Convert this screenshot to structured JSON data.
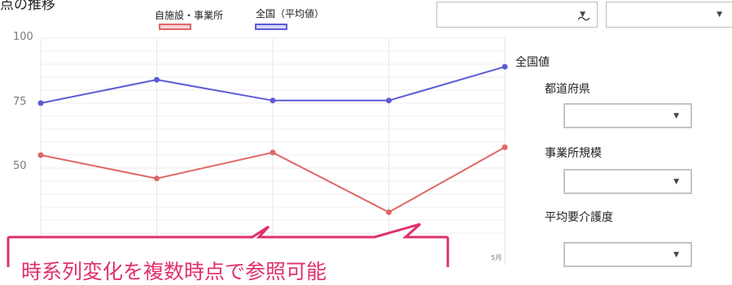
{
  "page": {
    "title_fragment": "点の推移"
  },
  "legend": {
    "own": {
      "label": "自施設・事業所",
      "color": "#e06666"
    },
    "national": {
      "label": "全国（平均値）",
      "color": "#5b5bd6"
    }
  },
  "chart_data": {
    "type": "line",
    "y_ticks": [
      "100",
      "75",
      "50"
    ],
    "ylim": [
      25,
      100
    ],
    "x": [
      0,
      1,
      2,
      3,
      4
    ],
    "x_tick_labels": [
      "",
      "",
      "",
      "",
      "5月"
    ],
    "series": [
      {
        "name": "自施設・事業所",
        "color": "#e06666",
        "values": [
          55,
          46,
          56,
          33,
          58
        ]
      },
      {
        "name": "全国（平均値）",
        "color": "#5b5bd6",
        "values": [
          75,
          84,
          76,
          76,
          89
        ]
      }
    ],
    "end_label": "全国値",
    "grid": true
  },
  "period": {
    "start_value": "",
    "separator": "～",
    "end_value": ""
  },
  "filters": [
    {
      "label": "都道府県",
      "value": ""
    },
    {
      "label": "事業所規模",
      "value": ""
    },
    {
      "label": "平均要介護度",
      "value": ""
    }
  ],
  "callout": {
    "text": "時系列変化を複数時点で参照可能",
    "border_color": "#e0306a"
  },
  "icons": {
    "dropdown": "chevron-down-icon"
  }
}
